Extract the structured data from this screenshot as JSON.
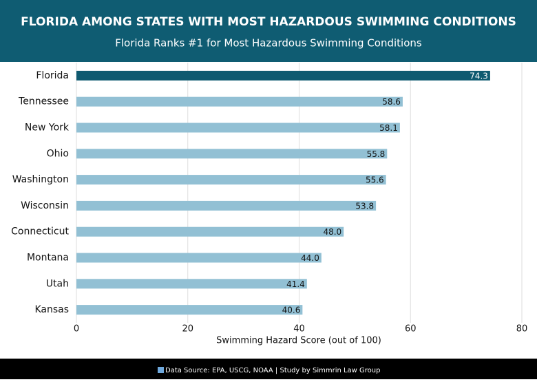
{
  "chart_data": {
    "type": "bar",
    "orientation": "horizontal",
    "title": "FLORIDA AMONG STATES WITH MOST HAZARDOUS SWIMMING CONDITIONS",
    "subtitle": "Florida Ranks #1 for Most Hazardous Swimming Conditions",
    "x_label": "Swimming Hazard Score (out of 100)",
    "source": "Data Source: EPA, USCG, NOAA | Study by Simmrin Law Group",
    "categories": [
      "Florida",
      "Tennessee",
      "New York",
      "Ohio",
      "Washington",
      "Wisconsin",
      "Connecticut",
      "Montana",
      "Utah",
      "Kansas"
    ],
    "values": [
      74.3,
      58.6,
      58.1,
      55.8,
      55.6,
      53.8,
      48.0,
      44.0,
      41.4,
      40.6
    ],
    "value_labels": [
      "74.3",
      "58.6",
      "58.1",
      "55.8",
      "55.6",
      "53.8",
      "48.0",
      "44.0",
      "41.4",
      "40.6"
    ],
    "colors": [
      "#0f5a70",
      "#92c0d4",
      "#92c0d4",
      "#92c0d4",
      "#92c0d4",
      "#92c0d4",
      "#92c0d4",
      "#92c0d4",
      "#92c0d4",
      "#92c0d4"
    ],
    "xlim": [
      0,
      80
    ],
    "xticks": [
      0,
      20,
      40,
      60,
      80
    ],
    "grid": true
  }
}
